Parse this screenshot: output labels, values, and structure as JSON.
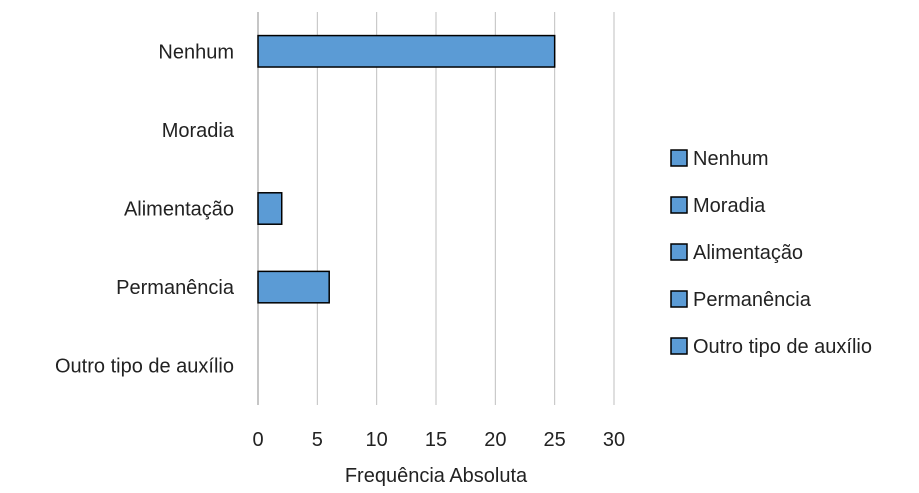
{
  "chart_data": {
    "type": "bar",
    "orientation": "horizontal",
    "categories": [
      "Nenhum",
      "Moradia",
      "Alimentação",
      "Permanência",
      "Outro tipo de auxílio"
    ],
    "values": [
      25,
      0,
      2,
      6,
      0
    ],
    "xlabel": "Frequência Absoluta",
    "ylabel": "",
    "xlim": [
      0,
      30
    ],
    "xticks": [
      0,
      5,
      10,
      15,
      20,
      25,
      30
    ],
    "grid": "vertical",
    "legend": {
      "placement": "right",
      "entries": [
        "Nenhum",
        "Moradia",
        "Alimentação",
        "Permanência",
        "Outro tipo de auxílio"
      ]
    },
    "colors": {
      "bar_fill": "#5b9bd5",
      "bar_stroke": "#000000",
      "grid": "#bfbfbf",
      "axis": "#8c8c8c"
    }
  }
}
